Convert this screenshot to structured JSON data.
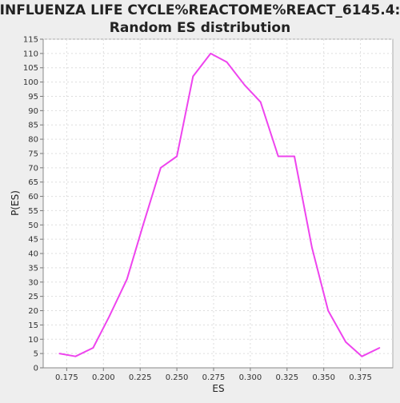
{
  "chart_data": {
    "type": "line",
    "title_line1": "INFLUENZA LIFE CYCLE%REACTOME%REACT_6145.4:",
    "title_line2": "Random ES distribution",
    "xlabel": "ES",
    "ylabel": "P(ES)",
    "xlim": [
      0.159,
      0.397
    ],
    "ylim": [
      0,
      115
    ],
    "x_ticks": [
      0.175,
      0.2,
      0.225,
      0.25,
      0.275,
      0.3,
      0.325,
      0.35,
      0.375
    ],
    "x_tick_labels": [
      "0.175",
      "0.200",
      "0.225",
      "0.250",
      "0.275",
      "0.300",
      "0.325",
      "0.350",
      "0.375"
    ],
    "y_ticks": [
      0,
      5,
      10,
      15,
      20,
      25,
      30,
      35,
      40,
      45,
      50,
      55,
      60,
      65,
      70,
      75,
      80,
      85,
      90,
      95,
      100,
      105,
      110,
      115
    ],
    "y_tick_labels": [
      "0",
      "5",
      "10",
      "15",
      "20",
      "25",
      "30",
      "35",
      "40",
      "45",
      "50",
      "55",
      "60",
      "65",
      "70",
      "75",
      "80",
      "85",
      "90",
      "95",
      "100",
      "105",
      "110",
      "115"
    ],
    "grid": true,
    "series": [
      {
        "color": "#ee44ee",
        "x": [
          0.17,
          0.181,
          0.193,
          0.204,
          0.216,
          0.227,
          0.239,
          0.25,
          0.261,
          0.273,
          0.284,
          0.296,
          0.307,
          0.319,
          0.33,
          0.342,
          0.353,
          0.365,
          0.376,
          0.388
        ],
        "y": [
          5,
          4,
          7,
          18,
          31,
          50,
          70,
          74,
          102,
          110,
          107,
          99,
          93,
          74,
          74,
          42,
          20,
          9,
          4,
          7
        ]
      }
    ]
  }
}
